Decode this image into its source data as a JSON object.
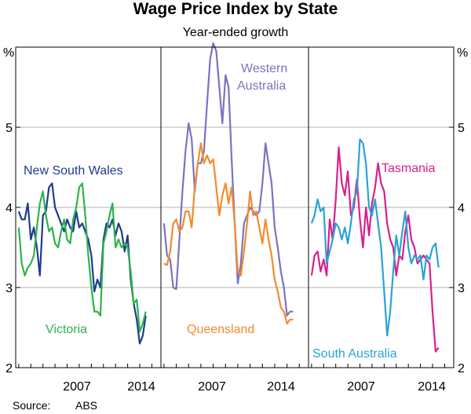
{
  "chart_data": {
    "type": "line",
    "title": "Wage Price Index by State",
    "subtitle": "Year-ended growth",
    "ylabel": "%",
    "ylim": [
      2,
      6
    ],
    "yticks": [
      2,
      3,
      4,
      5
    ],
    "ytick_labels": [
      "2",
      "3",
      "4",
      "5"
    ],
    "xlim": [
      2002.75,
      2014.75
    ],
    "xtick_labels": [
      "2007",
      "2014"
    ],
    "source_label": "Source:",
    "source_value": "ABS",
    "colors": {
      "nsw": "#1f3b8e",
      "vic": "#2db34a",
      "wa": "#7a73c2",
      "qld": "#f58a2d",
      "tas": "#d6218f",
      "sa": "#29a4d4"
    },
    "panels": [
      {
        "name": "panel-1",
        "series": [
          {
            "name": "New South Wales",
            "key": "nsw",
            "x": [
              2003.0,
              2003.25,
              2003.5,
              2003.75,
              2004.0,
              2004.25,
              2004.5,
              2004.75,
              2005.0,
              2005.25,
              2005.5,
              2005.75,
              2006.0,
              2006.25,
              2006.5,
              2006.75,
              2007.0,
              2007.25,
              2007.5,
              2007.75,
              2008.0,
              2008.25,
              2008.5,
              2008.75,
              2009.0,
              2009.25,
              2009.5,
              2009.75,
              2010.0,
              2010.25,
              2010.5,
              2010.75,
              2011.0,
              2011.25,
              2011.5,
              2011.75,
              2012.0,
              2012.25,
              2012.5,
              2012.75,
              2013.0,
              2013.25,
              2013.5
            ],
            "y": [
              3.95,
              3.85,
              3.85,
              4.05,
              3.6,
              3.75,
              3.5,
              3.15,
              3.9,
              3.95,
              4.25,
              4.3,
              4.0,
              3.9,
              3.8,
              3.7,
              3.85,
              3.75,
              3.7,
              3.95,
              3.75,
              3.8,
              3.7,
              3.6,
              3.4,
              2.95,
              3.1,
              3.0,
              3.6,
              3.8,
              3.75,
              3.85,
              3.65,
              3.8,
              3.7,
              3.45,
              3.65,
              3.1,
              2.8,
              2.6,
              2.3,
              2.4,
              2.65
            ]
          },
          {
            "name": "Victoria",
            "key": "vic",
            "x": [
              2003.0,
              2003.25,
              2003.5,
              2003.75,
              2004.0,
              2004.25,
              2004.5,
              2004.75,
              2005.0,
              2005.25,
              2005.5,
              2005.75,
              2006.0,
              2006.25,
              2006.5,
              2006.75,
              2007.0,
              2007.25,
              2007.5,
              2007.75,
              2008.0,
              2008.25,
              2008.5,
              2008.75,
              2009.0,
              2009.25,
              2009.5,
              2009.75,
              2010.0,
              2010.25,
              2010.5,
              2010.75,
              2011.0,
              2011.25,
              2011.5,
              2011.75,
              2012.0,
              2012.25,
              2012.5,
              2012.75,
              2013.0,
              2013.25,
              2013.5
            ],
            "y": [
              3.75,
              3.3,
              3.15,
              3.25,
              3.3,
              3.4,
              3.75,
              4.05,
              4.2,
              3.9,
              3.7,
              3.75,
              3.55,
              3.5,
              3.7,
              3.85,
              3.6,
              3.55,
              3.85,
              4.0,
              4.25,
              4.3,
              3.9,
              3.4,
              3.0,
              2.7,
              2.7,
              2.65,
              3.55,
              3.7,
              3.9,
              4.05,
              3.5,
              3.6,
              3.5,
              3.55,
              3.5,
              3.2,
              2.8,
              2.85,
              2.45,
              2.55,
              2.7
            ]
          },
          {
            "name": "New South Wales",
            "key": "nsw-label"
          },
          {
            "name": "Victoria",
            "key": "vic-label"
          }
        ]
      },
      {
        "name": "panel-2",
        "series": [
          {
            "name": "Western Australia",
            "key": "wa",
            "x": [
              2003.0,
              2003.25,
              2003.5,
              2003.75,
              2004.0,
              2004.25,
              2004.5,
              2004.75,
              2005.0,
              2005.25,
              2005.5,
              2005.75,
              2006.0,
              2006.25,
              2006.5,
              2006.75,
              2007.0,
              2007.25,
              2007.5,
              2007.75,
              2008.0,
              2008.25,
              2008.5,
              2008.75,
              2009.0,
              2009.25,
              2009.5,
              2009.75,
              2010.0,
              2010.25,
              2010.5,
              2010.75,
              2011.0,
              2011.25,
              2011.5,
              2011.75,
              2012.0,
              2012.25,
              2012.5,
              2012.75,
              2013.0,
              2013.25,
              2013.5
            ],
            "y": [
              3.8,
              3.4,
              3.35,
              3.0,
              2.98,
              3.6,
              4.2,
              4.7,
              5.05,
              4.85,
              4.2,
              4.55,
              4.55,
              4.7,
              5.3,
              5.85,
              6.05,
              5.95,
              5.5,
              5.05,
              5.65,
              5.5,
              4.6,
              3.8,
              3.05,
              3.3,
              3.8,
              3.9,
              4.0,
              3.95,
              3.9,
              3.95,
              4.3,
              4.8,
              4.55,
              4.3,
              3.75,
              3.5,
              3.2,
              3.0,
              2.65,
              2.7,
              2.7
            ]
          },
          {
            "name": "Queensland",
            "key": "qld",
            "x": [
              2003.0,
              2003.25,
              2003.5,
              2003.75,
              2004.0,
              2004.25,
              2004.5,
              2004.75,
              2005.0,
              2005.25,
              2005.5,
              2005.75,
              2006.0,
              2006.25,
              2006.5,
              2006.75,
              2007.0,
              2007.25,
              2007.5,
              2007.75,
              2008.0,
              2008.25,
              2008.5,
              2008.75,
              2009.0,
              2009.25,
              2009.5,
              2009.75,
              2010.0,
              2010.25,
              2010.5,
              2010.75,
              2011.0,
              2011.25,
              2011.5,
              2011.75,
              2012.0,
              2012.25,
              2012.5,
              2012.75,
              2013.0,
              2013.25,
              2013.5
            ],
            "y": [
              3.3,
              3.28,
              3.45,
              3.8,
              3.85,
              3.7,
              3.75,
              3.95,
              3.95,
              3.75,
              4.25,
              4.55,
              4.8,
              4.55,
              4.65,
              4.55,
              4.6,
              4.25,
              3.9,
              4.15,
              4.3,
              4.05,
              4.25,
              3.8,
              3.2,
              3.15,
              3.45,
              3.8,
              4.2,
              3.9,
              3.95,
              3.75,
              3.55,
              3.85,
              3.6,
              3.4,
              3.1,
              2.95,
              2.75,
              2.7,
              2.55,
              2.6,
              2.6
            ]
          },
          {
            "name": "Western Australia",
            "key": "wa-label"
          },
          {
            "name": "Queensland",
            "key": "qld-label"
          }
        ]
      },
      {
        "name": "panel-3",
        "series": [
          {
            "name": "Tasmania",
            "key": "tas",
            "x": [
              2003.0,
              2003.25,
              2003.5,
              2003.75,
              2004.0,
              2004.25,
              2004.5,
              2004.75,
              2005.0,
              2005.25,
              2005.5,
              2005.75,
              2006.0,
              2006.25,
              2006.5,
              2006.75,
              2007.0,
              2007.25,
              2007.5,
              2007.75,
              2008.0,
              2008.25,
              2008.5,
              2008.75,
              2009.0,
              2009.25,
              2009.5,
              2009.75,
              2010.0,
              2010.25,
              2010.5,
              2010.75,
              2011.0,
              2011.25,
              2011.5,
              2011.75,
              2012.0,
              2012.25,
              2012.5,
              2012.75,
              2013.0,
              2013.25,
              2013.5
            ],
            "y": [
              3.15,
              3.4,
              3.45,
              3.2,
              3.35,
              3.15,
              3.85,
              3.6,
              4.1,
              4.75,
              4.3,
              4.15,
              4.45,
              3.9,
              4.0,
              4.35,
              3.85,
              3.5,
              4.0,
              3.65,
              4.05,
              4.25,
              4.55,
              4.3,
              4.2,
              3.8,
              3.6,
              3.5,
              3.15,
              3.4,
              3.35,
              3.7,
              3.9,
              3.6,
              3.5,
              3.3,
              3.35,
              3.4,
              3.35,
              3.3,
              2.7,
              2.2,
              2.25
            ]
          },
          {
            "name": "South Australia",
            "key": "sa",
            "x": [
              2003.0,
              2003.25,
              2003.5,
              2003.75,
              2004.0,
              2004.25,
              2004.5,
              2004.75,
              2005.0,
              2005.25,
              2005.5,
              2005.75,
              2006.0,
              2006.25,
              2006.5,
              2006.75,
              2007.0,
              2007.25,
              2007.5,
              2007.75,
              2008.0,
              2008.25,
              2008.5,
              2008.75,
              2009.0,
              2009.25,
              2009.5,
              2009.75,
              2010.0,
              2010.25,
              2010.5,
              2010.75,
              2011.0,
              2011.25,
              2011.5,
              2011.75,
              2012.0,
              2012.25,
              2012.5,
              2012.75,
              2013.0,
              2013.25,
              2013.5
            ],
            "y": [
              3.8,
              3.9,
              4.1,
              3.95,
              4.0,
              3.3,
              3.45,
              3.6,
              3.8,
              3.75,
              3.6,
              3.75,
              3.55,
              3.8,
              4.1,
              4.2,
              4.85,
              4.8,
              4.55,
              4.0,
              3.9,
              4.1,
              3.8,
              3.5,
              2.95,
              2.4,
              2.7,
              3.2,
              3.65,
              3.4,
              3.7,
              3.95,
              3.5,
              3.3,
              3.4,
              3.35,
              3.4,
              3.1,
              3.4,
              3.35,
              3.5,
              3.55,
              3.25
            ]
          },
          {
            "name": "Tasmania",
            "key": "tas-label"
          },
          {
            "name": "South Australia",
            "key": "sa-label"
          }
        ]
      }
    ]
  }
}
